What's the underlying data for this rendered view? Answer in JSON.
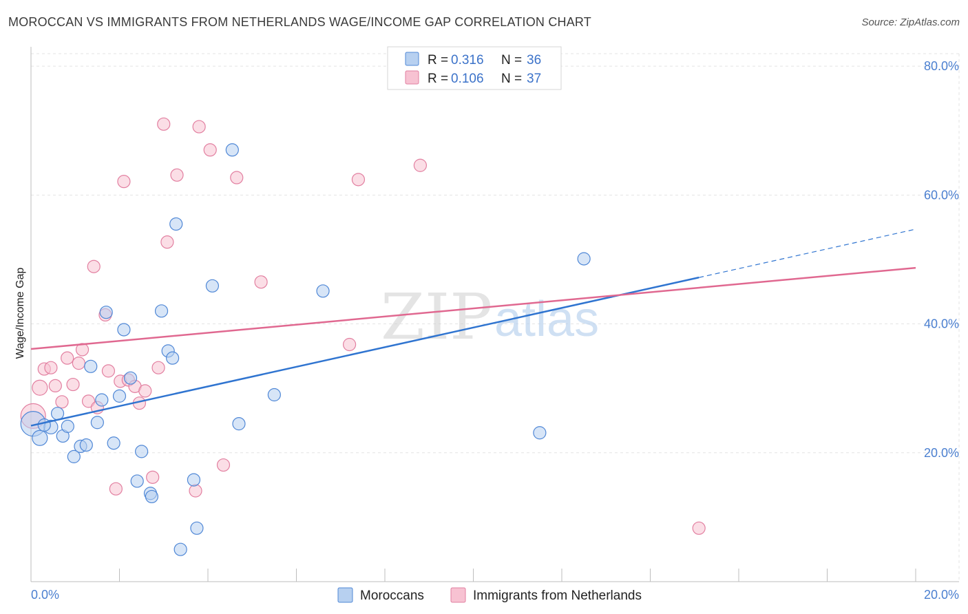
{
  "title": "MOROCCAN VS IMMIGRANTS FROM NETHERLANDS WAGE/INCOME GAP CORRELATION CHART",
  "source": "Source: ZipAtlas.com",
  "watermark": {
    "zip": "ZIP",
    "atlas": "atlas"
  },
  "colors": {
    "blue_fill": "#b7d0f0",
    "blue_stroke": "#4f87d6",
    "blue_line": "#2f74d0",
    "pink_fill": "#f7c2d2",
    "pink_stroke": "#e27fa0",
    "pink_line": "#e06890",
    "grid": "#e3e3e3",
    "tick": "#4a7fd0"
  },
  "legend": {
    "r_label": "R =",
    "n_label": "N =",
    "rows": [
      {
        "r": "0.316",
        "n": "36"
      },
      {
        "r": "0.106",
        "n": "37"
      }
    ]
  },
  "bottom_legend": [
    "Moroccans",
    "Immigrants from Netherlands"
  ],
  "chart_data": {
    "type": "scatter",
    "title": "MOROCCAN VS IMMIGRANTS FROM NETHERLANDS WAGE/INCOME GAP CORRELATION CHART",
    "xlabel": "",
    "ylabel": "Wage/Income Gap",
    "xlim": [
      0,
      20
    ],
    "ylim": [
      0,
      83
    ],
    "x_tick_labels": [
      "0.0%",
      "20.0%"
    ],
    "y_ticks": [
      20,
      40,
      60,
      80
    ],
    "y_tick_labels": [
      "20.0%",
      "40.0%",
      "60.0%",
      "80.0%"
    ],
    "grid": true,
    "legend_position": "top-center",
    "series": [
      {
        "name": "Moroccans",
        "r": 0.316,
        "n": 36,
        "trend": {
          "x0": 0,
          "y0": 24.2,
          "x1": 15.1,
          "y1": 47.2,
          "dash_to_x": 20,
          "dash_to_y": 54.7
        },
        "points": [
          [
            0.05,
            24.5,
            18
          ],
          [
            0.2,
            22.3,
            11
          ],
          [
            0.45,
            24.0,
            10
          ],
          [
            0.6,
            26.1,
            9
          ],
          [
            0.72,
            22.6,
            9
          ],
          [
            0.83,
            24.1,
            9
          ],
          [
            0.97,
            19.4,
            9
          ],
          [
            1.12,
            21.0,
            9
          ],
          [
            1.25,
            21.2,
            9
          ],
          [
            1.35,
            33.4,
            9
          ],
          [
            1.5,
            24.7,
            9
          ],
          [
            1.6,
            28.2,
            9
          ],
          [
            1.7,
            41.8,
            9
          ],
          [
            1.87,
            21.5,
            9
          ],
          [
            2.0,
            28.8,
            9
          ],
          [
            2.1,
            39.1,
            9
          ],
          [
            2.25,
            31.6,
            9
          ],
          [
            2.4,
            15.6,
            9
          ],
          [
            2.5,
            20.2,
            9
          ],
          [
            2.7,
            13.7,
            9
          ],
          [
            2.73,
            13.2,
            9
          ],
          [
            2.95,
            42.0,
            9
          ],
          [
            3.1,
            35.8,
            9
          ],
          [
            3.2,
            34.7,
            9
          ],
          [
            3.28,
            55.5,
            9
          ],
          [
            3.38,
            5.0,
            9
          ],
          [
            3.68,
            15.8,
            9
          ],
          [
            3.75,
            8.3,
            9
          ],
          [
            4.1,
            45.9,
            9
          ],
          [
            4.55,
            67.0,
            9
          ],
          [
            4.7,
            24.5,
            9
          ],
          [
            5.5,
            29.0,
            9
          ],
          [
            6.6,
            45.1,
            9
          ],
          [
            11.5,
            23.1,
            9
          ],
          [
            12.5,
            50.1,
            9
          ],
          [
            0.3,
            24.3,
            9
          ]
        ]
      },
      {
        "name": "Immigrants from Netherlands",
        "r": 0.106,
        "n": 37,
        "trend": {
          "x0": 0,
          "y0": 36.1,
          "x1": 20,
          "y1": 48.7
        },
        "points": [
          [
            0.05,
            25.7,
            18
          ],
          [
            0.2,
            30.1,
            11
          ],
          [
            0.3,
            33.0,
            9
          ],
          [
            0.45,
            33.2,
            9
          ],
          [
            0.55,
            30.4,
            9
          ],
          [
            0.7,
            27.9,
            9
          ],
          [
            0.82,
            34.7,
            9
          ],
          [
            0.95,
            30.6,
            9
          ],
          [
            1.08,
            33.9,
            9
          ],
          [
            1.16,
            36.0,
            9
          ],
          [
            1.3,
            28.0,
            9
          ],
          [
            1.42,
            48.9,
            9
          ],
          [
            1.5,
            27.0,
            9
          ],
          [
            1.68,
            41.4,
            9
          ],
          [
            1.75,
            32.7,
            9
          ],
          [
            1.92,
            14.4,
            9
          ],
          [
            2.02,
            31.1,
            9
          ],
          [
            2.1,
            62.1,
            9
          ],
          [
            2.2,
            31.3,
            9
          ],
          [
            2.35,
            30.3,
            9
          ],
          [
            2.45,
            27.7,
            9
          ],
          [
            2.58,
            29.6,
            9
          ],
          [
            2.75,
            16.2,
            9
          ],
          [
            2.88,
            33.2,
            9
          ],
          [
            3.0,
            71.0,
            9
          ],
          [
            3.08,
            52.7,
            9
          ],
          [
            3.3,
            63.1,
            9
          ],
          [
            3.72,
            14.1,
            9
          ],
          [
            3.8,
            70.6,
            9
          ],
          [
            4.05,
            67.0,
            9
          ],
          [
            4.35,
            18.1,
            9
          ],
          [
            4.65,
            62.7,
            9
          ],
          [
            5.2,
            46.5,
            9
          ],
          [
            7.2,
            36.8,
            9
          ],
          [
            7.4,
            62.4,
            9
          ],
          [
            8.8,
            64.6,
            9
          ],
          [
            15.1,
            8.3,
            9
          ]
        ]
      }
    ]
  }
}
